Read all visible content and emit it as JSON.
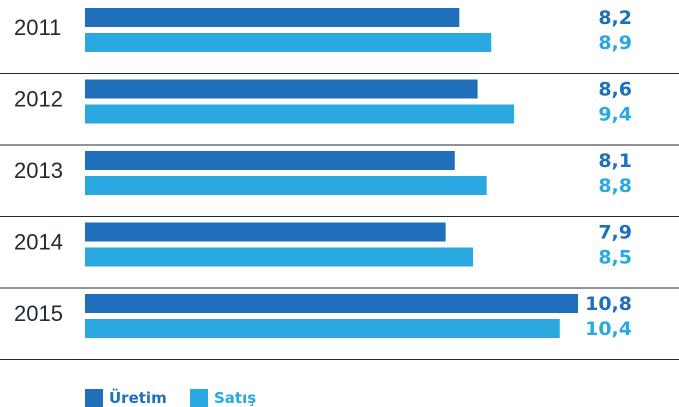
{
  "chart_data": {
    "type": "bar",
    "orientation": "horizontal",
    "categories": [
      "2011",
      "2012",
      "2013",
      "2014",
      "2015"
    ],
    "series": [
      {
        "name": "Üretim",
        "values": [
          8.2,
          8.6,
          8.1,
          7.9,
          10.8
        ],
        "labels": [
          "8,2",
          "8,6",
          "8,1",
          "7,9",
          "10,8"
        ],
        "color": "#1f6fba"
      },
      {
        "name": "Satış",
        "values": [
          8.9,
          9.4,
          8.8,
          8.5,
          10.4
        ],
        "labels": [
          "8,9",
          "9,4",
          "8,8",
          "8,5",
          "10,4"
        ],
        "color": "#2aa9e0"
      }
    ],
    "xlim": [
      0,
      10.8
    ],
    "grid": false,
    "legend_position": "bottom-left"
  }
}
